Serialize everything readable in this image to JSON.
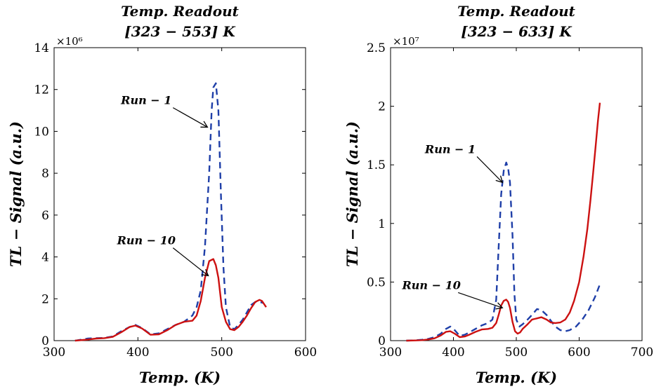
{
  "chart_data": [
    {
      "type": "line",
      "title": [
        "Temp. Readout",
        "[323 − 553]  K"
      ],
      "xlabel": "Temp. (K)",
      "ylabel": "TL − Signal (a.u.)",
      "xlim": [
        300,
        600
      ],
      "ylim": [
        0,
        14
      ],
      "y_multiplier": "×10⁶",
      "xticks": [
        300,
        400,
        500,
        600
      ],
      "yticks": [
        0,
        2,
        4,
        6,
        8,
        10,
        12,
        14
      ],
      "grid": false,
      "series": [
        {
          "name": "Run − 1",
          "style": "dashed",
          "color": "#1f3fa8",
          "x": [
            325,
            340,
            350,
            360,
            370,
            380,
            390,
            397,
            405,
            415,
            425,
            435,
            445,
            455,
            465,
            470,
            475,
            480,
            485,
            488,
            490,
            493,
            496,
            499,
            502,
            505,
            510,
            515,
            520,
            525,
            530,
            535,
            540,
            545,
            550
          ],
          "y": [
            0.0,
            0.1,
            0.12,
            0.13,
            0.2,
            0.45,
            0.65,
            0.75,
            0.6,
            0.3,
            0.35,
            0.55,
            0.75,
            0.9,
            1.2,
            1.6,
            2.4,
            4.5,
            8.0,
            11.0,
            12.1,
            12.3,
            11.0,
            7.0,
            3.5,
            1.6,
            0.65,
            0.55,
            0.75,
            1.0,
            1.35,
            1.7,
            1.85,
            1.85,
            1.8
          ]
        },
        {
          "name": "Run − 10",
          "style": "solid",
          "color": "#cc1111",
          "x": [
            325,
            340,
            350,
            360,
            370,
            380,
            390,
            397,
            405,
            415,
            425,
            435,
            445,
            455,
            465,
            470,
            475,
            480,
            485,
            490,
            493,
            496,
            500,
            505,
            510,
            515,
            520,
            525,
            530,
            535,
            540,
            545,
            548,
            553
          ],
          "y": [
            0.0,
            0.05,
            0.1,
            0.12,
            0.18,
            0.4,
            0.65,
            0.72,
            0.58,
            0.28,
            0.3,
            0.5,
            0.75,
            0.9,
            0.95,
            1.2,
            1.9,
            3.0,
            3.8,
            3.9,
            3.6,
            3.0,
            1.6,
            0.9,
            0.55,
            0.5,
            0.65,
            0.9,
            1.2,
            1.55,
            1.85,
            1.95,
            1.9,
            1.6
          ]
        }
      ],
      "annotations": [
        {
          "text": "Run − 1",
          "target": [
            483,
            10.2
          ],
          "label_at": [
            410,
            11.3
          ]
        },
        {
          "text": "Run − 10",
          "target": [
            484,
            3.1
          ],
          "label_at": [
            410,
            4.6
          ]
        }
      ]
    },
    {
      "type": "line",
      "title": [
        "Temp. Readout",
        "[323 − 633]  K"
      ],
      "xlabel": "Temp. (K)",
      "ylabel": "TL − Signal (a.u.)",
      "xlim": [
        300,
        700
      ],
      "ylim": [
        0,
        2.5
      ],
      "y_multiplier": "×10⁷",
      "xticks": [
        300,
        400,
        500,
        600,
        700
      ],
      "yticks": [
        0,
        0.5,
        1,
        1.5,
        2,
        2.5
      ],
      "ytick_labels": [
        "0",
        "0.5",
        "1",
        "1.5",
        "2",
        "2.5"
      ],
      "grid": false,
      "series": [
        {
          "name": "Run − 1",
          "style": "dashed",
          "color": "#1f3fa8",
          "x": [
            325,
            340,
            350,
            360,
            370,
            380,
            388,
            395,
            402,
            410,
            418,
            425,
            435,
            445,
            455,
            462,
            468,
            472,
            476,
            480,
            484,
            487,
            490,
            494,
            497,
            500,
            505,
            510,
            518,
            525,
            533,
            540,
            548,
            555,
            562,
            570,
            578,
            585,
            595,
            605,
            615,
            625,
            633
          ],
          "y": [
            0.0,
            0.003,
            0.008,
            0.015,
            0.03,
            0.06,
            0.1,
            0.12,
            0.09,
            0.04,
            0.05,
            0.07,
            0.1,
            0.13,
            0.15,
            0.18,
            0.35,
            0.8,
            1.25,
            1.45,
            1.52,
            1.47,
            1.35,
            0.9,
            0.4,
            0.18,
            0.12,
            0.14,
            0.18,
            0.22,
            0.27,
            0.26,
            0.22,
            0.17,
            0.12,
            0.09,
            0.08,
            0.09,
            0.12,
            0.18,
            0.26,
            0.37,
            0.48
          ]
        },
        {
          "name": "Run − 10",
          "style": "solid",
          "color": "#cc1111",
          "x": [
            325,
            340,
            350,
            360,
            370,
            380,
            388,
            395,
            402,
            410,
            418,
            425,
            435,
            445,
            455,
            462,
            468,
            472,
            476,
            480,
            484,
            487,
            490,
            494,
            498,
            502,
            506,
            510,
            518,
            525,
            533,
            540,
            548,
            555,
            562,
            570,
            578,
            585,
            592,
            600,
            607,
            613,
            618,
            622,
            626,
            630,
            633
          ],
          "y": [
            0.0,
            0.002,
            0.004,
            0.01,
            0.02,
            0.045,
            0.075,
            0.08,
            0.06,
            0.03,
            0.035,
            0.05,
            0.075,
            0.095,
            0.1,
            0.11,
            0.15,
            0.22,
            0.3,
            0.34,
            0.35,
            0.33,
            0.28,
            0.16,
            0.08,
            0.06,
            0.07,
            0.1,
            0.14,
            0.18,
            0.19,
            0.2,
            0.18,
            0.155,
            0.15,
            0.155,
            0.18,
            0.24,
            0.34,
            0.5,
            0.72,
            0.95,
            1.2,
            1.42,
            1.65,
            1.88,
            2.03
          ]
        }
      ],
      "annotations": [
        {
          "text": "Run − 1",
          "target": [
            478,
            1.35
          ],
          "label_at": [
            395,
            1.6
          ]
        },
        {
          "text": "Run − 10",
          "target": [
            478,
            0.28
          ],
          "label_at": [
            365,
            0.44
          ]
        }
      ]
    }
  ]
}
